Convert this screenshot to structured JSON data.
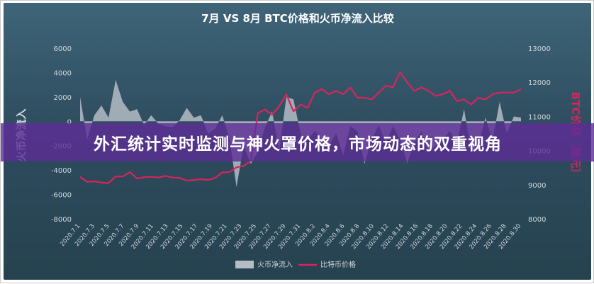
{
  "colors": {
    "flow": "#b4bcc4",
    "btc": "#d8245e",
    "text": "#cfd8dd",
    "title": "#ffffff",
    "ylabel_right": "#d8245e",
    "banner": "#5c2d96"
  },
  "banner": {
    "text": "外汇统计实时监测与神火罩价格，市场动态的双重视角"
  },
  "chart_data": {
    "type": "area+line",
    "title": "7月 VS 8月 BTC价格和火币净流入比较",
    "ylabel_left": "火币净流入",
    "ylabel_right": "BTC价格（美元）",
    "ylim_left": [
      -8000,
      6000
    ],
    "ylim_right": [
      8000,
      13000
    ],
    "left_ticks": [
      "6000",
      "4000",
      "2000",
      "0",
      "-2000",
      "-4000",
      "-6000",
      "-8000"
    ],
    "right_ticks": [
      "13000",
      "12000",
      "11000",
      "10000",
      "9000",
      "8000"
    ],
    "x_labels": [
      "2020.7.1",
      "2020.7.3",
      "2020.7.5",
      "2020.7.7",
      "2020.7.9",
      "2020.7.11",
      "2020.7.13",
      "2020.7.15",
      "2020.7.17",
      "2020.7.19",
      "2020.7.21",
      "2020.7.23",
      "2020.7.25",
      "2020.7.27",
      "2020.7.29",
      "2020.7.31",
      "2020.8.2",
      "2020.8.4",
      "2020.8.6",
      "2020.8.8",
      "2020.8.10",
      "2020.8.12",
      "2020.8.14",
      "2020.8.16",
      "2020.8.18",
      "2020.8.20",
      "2020.8.22",
      "2020.8.24",
      "2020.8.26",
      "2020.8.28",
      "2020.8.30"
    ],
    "series": [
      {
        "name": "火币净流入",
        "type": "area",
        "values": [
          2000,
          -1500,
          500,
          1300,
          300,
          3400,
          1600,
          800,
          1000,
          -300,
          500,
          -200,
          -400,
          -500,
          100,
          1100,
          300,
          500,
          -1000,
          -600,
          500,
          -1400,
          -5400,
          -2000,
          -3500,
          -2500,
          -500,
          800,
          -2500,
          2000,
          1800,
          -1000,
          -1500,
          -800,
          -1500,
          -2000,
          -1000,
          -2800,
          -400,
          -800,
          -3500,
          -1500,
          -300,
          -1800,
          -400,
          -1500,
          -3400,
          -1800,
          -800,
          -2500,
          -2000,
          -1500,
          -800,
          -1800,
          1000,
          -2500,
          -2000,
          300,
          -1500,
          1600,
          -1000,
          400,
          300
        ]
      },
      {
        "name": "比特币价格",
        "type": "line",
        "values": [
          9230,
          9080,
          9100,
          9060,
          9050,
          9240,
          9240,
          9370,
          9180,
          9220,
          9230,
          9210,
          9260,
          9210,
          9200,
          9120,
          9140,
          9160,
          9140,
          9200,
          9360,
          9370,
          9510,
          9550,
          9700,
          11100,
          11200,
          11050,
          11300,
          11650,
          11150,
          11350,
          11250,
          11700,
          11800,
          11650,
          11750,
          11650,
          11850,
          11550,
          11550,
          11500,
          11700,
          11900,
          11850,
          12300,
          12000,
          11750,
          11850,
          11750,
          11600,
          11650,
          11750,
          11450,
          11500,
          11350,
          11550,
          11500,
          11650,
          11700,
          11700,
          11700,
          11800
        ]
      }
    ],
    "legend": "bottom",
    "grid": false
  }
}
